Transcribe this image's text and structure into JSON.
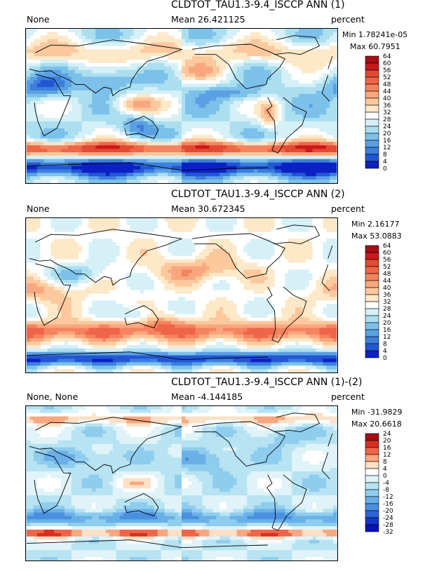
{
  "panels": [
    {
      "title": "CLDTOT_TAU1.3-9.4_ISCCP ANN (1)",
      "left_label": "None",
      "mean_label": "Mean 26.421125",
      "units": "percent",
      "min_label": "Min 1.78241e-05",
      "max_label": "Max 60.7951",
      "levels": [
        "64",
        "60",
        "56",
        "52",
        "48",
        "44",
        "40",
        "36",
        "32",
        "28",
        "24",
        "20",
        "16",
        "12",
        "8",
        "4",
        "0"
      ],
      "colors": [
        "#a50f15",
        "#cb181d",
        "#e34a33",
        "#ef6548",
        "#f4845f",
        "#f9a77e",
        "#fcc89c",
        "#fde8c8",
        "#ffffff",
        "#d6f0f7",
        "#abdff0",
        "#7cc1ea",
        "#5ba0e3",
        "#3d7fdc",
        "#2356d3",
        "#0b21c4"
      ],
      "field": "abs1"
    },
    {
      "title": "CLDTOT_TAU1.3-9.4_ISCCP ANN (2)",
      "left_label": "None",
      "mean_label": "Mean 30.672345",
      "units": "percent",
      "min_label": "Min 2.16177",
      "max_label": "Max 53.0883",
      "levels": [
        "64",
        "60",
        "56",
        "52",
        "48",
        "44",
        "40",
        "36",
        "32",
        "28",
        "24",
        "20",
        "16",
        "12",
        "8",
        "4",
        "0"
      ],
      "colors": [
        "#a50f15",
        "#cb181d",
        "#e34a33",
        "#ef6548",
        "#f4845f",
        "#f9a77e",
        "#fcc89c",
        "#fde8c8",
        "#ffffff",
        "#d6f0f7",
        "#abdff0",
        "#7cc1ea",
        "#5ba0e3",
        "#3d7fdc",
        "#2356d3",
        "#0b21c4"
      ],
      "field": "abs2"
    },
    {
      "title": "CLDTOT_TAU1.3-9.4_ISCCP ANN (1)-(2)",
      "left_label": "None, None",
      "mean_label": "Mean -4.144185",
      "units": "percent",
      "min_label": "Min -31.9829",
      "max_label": "Max 20.6618",
      "levels": [
        "24",
        "20",
        "16",
        "12",
        "8",
        "4",
        "0",
        "-4",
        "-8",
        "-12",
        "-16",
        "-20",
        "-24",
        "-28",
        "-32"
      ],
      "colors": [
        "#a50f15",
        "#d7301f",
        "#ef6548",
        "#f9a77e",
        "#fde0c5",
        "#ffffff",
        "#dff3f8",
        "#b7e3f2",
        "#8fcdee",
        "#6ab0e8",
        "#4a90e0",
        "#2e63d6",
        "#1436c9",
        "#0b10b8"
      ],
      "field": "diff"
    }
  ]
}
